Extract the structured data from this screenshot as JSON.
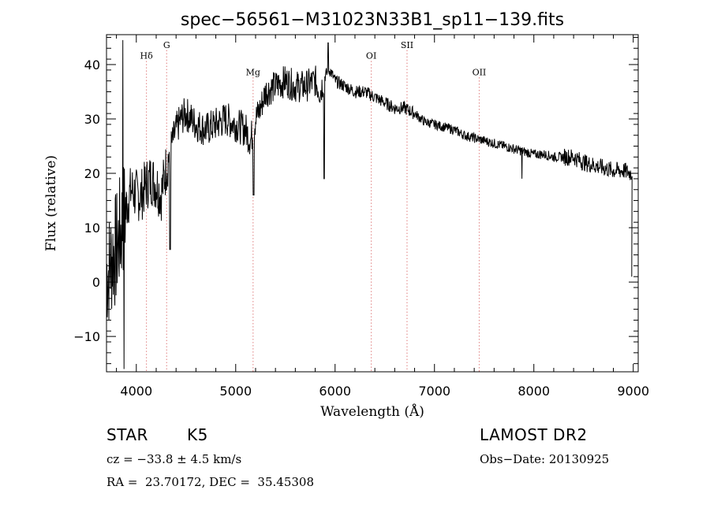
{
  "chart_data": {
    "type": "line",
    "title": "spec−56561−M31023N33B1_sp11−139.fits",
    "xlabel": "Wavelength (Å)",
    "ylabel": "Flux (relative)",
    "xlim": [
      3700,
      9050
    ],
    "ylim": [
      -16.5,
      45.5
    ],
    "xticks": [
      4000,
      5000,
      6000,
      7000,
      8000,
      9000
    ],
    "yticks": [
      -10,
      0,
      10,
      20,
      30,
      40
    ],
    "xtick_labels": [
      "4000",
      "5000",
      "6000",
      "7000",
      "8000",
      "9000"
    ],
    "ytick_labels": [
      "−10",
      "0",
      "10",
      "20",
      "30",
      "40"
    ],
    "grid": false,
    "series": [
      {
        "x": [
          3720,
          3760,
          3800,
          3850,
          3900,
          3950,
          4000,
          4050,
          4100,
          4150,
          4200,
          4250,
          4300,
          4350,
          4400,
          4450,
          4500,
          4600,
          4700,
          4800,
          4900,
          5000,
          5100,
          5150,
          5200,
          5250,
          5300,
          5400,
          5500,
          5600,
          5700,
          5800,
          5850,
          5900,
          5950,
          6000,
          6100,
          6200,
          6300,
          6400,
          6500,
          6600,
          6700,
          6800,
          6900,
          7000,
          7100,
          7200,
          7300,
          7400,
          7500,
          7600,
          7700,
          7800,
          7900,
          8000,
          8100,
          8200,
          8300,
          8400,
          8500,
          8600,
          8700,
          8800,
          8900,
          8980
        ],
        "y": [
          2,
          5,
          6,
          10,
          14,
          17,
          16,
          16,
          18,
          19,
          18,
          16,
          21,
          25,
          28,
          30,
          31,
          29,
          28,
          29,
          30,
          29,
          28,
          26,
          30,
          32,
          35,
          36,
          37,
          36,
          36,
          37,
          35,
          38,
          39,
          37,
          36,
          35,
          35,
          34,
          33,
          32,
          32,
          31,
          29.5,
          29,
          28.5,
          28,
          27,
          26.5,
          26,
          25.5,
          25,
          24.5,
          24,
          23.5,
          23.5,
          23,
          23,
          23,
          22,
          21.5,
          21,
          20.5,
          20.5,
          20
        ]
      }
    ],
    "annotations": [
      {
        "label": "Hδ",
        "x": 4102,
        "label_y": 41.5
      },
      {
        "label": "G",
        "x": 4305,
        "label_y": 43.5
      },
      {
        "label": "Mg",
        "x": 5175,
        "label_y": 38.5
      },
      {
        "label": "OI",
        "x": 6364,
        "label_y": 41.5
      },
      {
        "label": "SII",
        "x": 6724,
        "label_y": 43.5
      },
      {
        "label": "OII",
        "x": 7450,
        "label_y": 38.5
      }
    ],
    "line_color": "#000000",
    "annotation_line_color": "#d04040"
  },
  "info": {
    "class": "STAR",
    "subclass": "K5",
    "survey": "LAMOST DR2",
    "cz": "cz = −33.8 ± 4.5 km/s",
    "obs_date": "Obs−Date: 20130925",
    "radec": "RA =  23.70172, DEC =  35.45308"
  }
}
